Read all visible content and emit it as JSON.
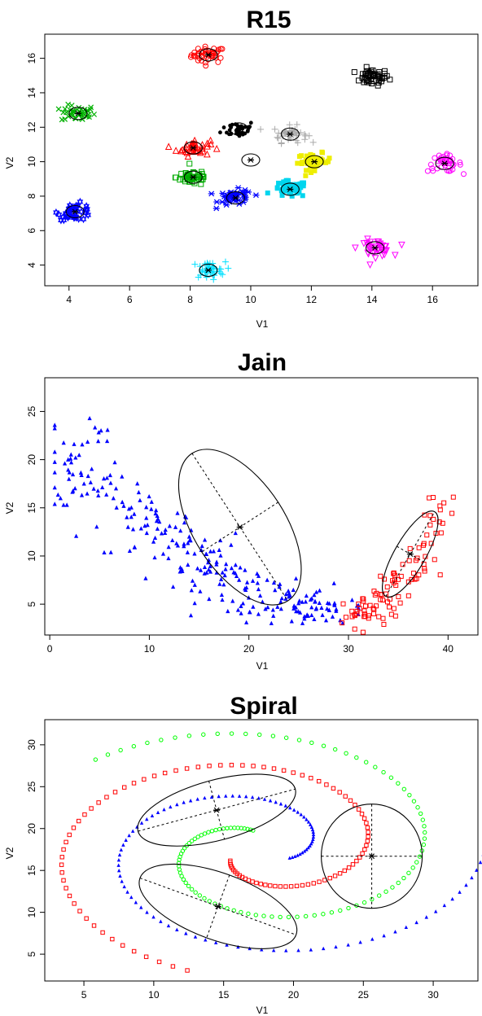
{
  "chart_data": [
    {
      "type": "scatter",
      "title": "R15",
      "xlabel": "V1",
      "ylabel": "V2",
      "xlim": [
        3.2,
        17.5
      ],
      "ylim": [
        2.8,
        17.4
      ],
      "xticks": [
        4,
        6,
        8,
        10,
        12,
        14,
        16
      ],
      "yticks": [
        4,
        6,
        8,
        10,
        12,
        14,
        16
      ],
      "clusters": [
        {
          "color": "#ff0000",
          "marker": "circle",
          "center": [
            8.6,
            16.2
          ],
          "count": 45
        },
        {
          "color": "#000000",
          "marker": "square",
          "center": [
            14.0,
            14.9
          ],
          "count": 45
        },
        {
          "color": "#00b000",
          "marker": "x",
          "center": [
            4.3,
            12.8
          ],
          "count": 40
        },
        {
          "color": "#000000",
          "marker": "dot",
          "center": [
            9.6,
            11.9
          ],
          "count": 40
        },
        {
          "color": "#aaaaaa",
          "marker": "plus",
          "center": [
            11.3,
            11.6
          ],
          "count": 40
        },
        {
          "color": "#ff0000",
          "marker": "triangle",
          "center": [
            8.1,
            10.8
          ],
          "count": 40
        },
        {
          "color": "#000000",
          "marker": "empty",
          "center": [
            10.0,
            10.1
          ],
          "count": 0
        },
        {
          "color": "#eeee00",
          "marker": "square-filled",
          "center": [
            12.1,
            10.0
          ],
          "count": 45
        },
        {
          "color": "#ff00ff",
          "marker": "circle",
          "center": [
            16.4,
            9.9
          ],
          "count": 40
        },
        {
          "color": "#00aa00",
          "marker": "square",
          "center": [
            8.1,
            9.1
          ],
          "count": 45
        },
        {
          "color": "#00d5ee",
          "marker": "square-filled",
          "center": [
            11.3,
            8.4
          ],
          "count": 45
        },
        {
          "color": "#0000ff",
          "marker": "asterisk",
          "center": [
            9.5,
            7.9
          ],
          "count": 45
        },
        {
          "color": "#0000ff",
          "marker": "star",
          "center": [
            4.2,
            7.1
          ],
          "count": 40
        },
        {
          "color": "#ff00ff",
          "marker": "triangle-down",
          "center": [
            14.1,
            5.0
          ],
          "count": 40
        },
        {
          "color": "#00e0ff",
          "marker": "plus",
          "center": [
            8.6,
            3.7
          ],
          "count": 40
        }
      ]
    },
    {
      "type": "scatter",
      "title": "Jain",
      "xlabel": "V1",
      "ylabel": "V2",
      "xlim": [
        -0.5,
        43
      ],
      "ylim": [
        1.8,
        28.5
      ],
      "xticks": [
        0,
        10,
        20,
        30,
        40
      ],
      "yticks": [
        5,
        10,
        15,
        20,
        25
      ],
      "clusters": [
        {
          "color": "#0000ff",
          "marker": "triangle-filled",
          "shape": "crescent",
          "center": [
            19.1,
            13.0
          ],
          "count": 276
        },
        {
          "color": "#ff0000",
          "marker": "square",
          "shape": "arm",
          "center": [
            36.2,
            10.2
          ],
          "count": 97
        }
      ]
    },
    {
      "type": "scatter",
      "title": "Spiral",
      "xlabel": "V1",
      "ylabel": "V2",
      "xlim": [
        2.2,
        33.2
      ],
      "ylim": [
        1.8,
        33.0
      ],
      "xticks": [
        5,
        10,
        15,
        20,
        25,
        30
      ],
      "yticks": [
        5,
        10,
        15,
        20,
        25,
        30
      ],
      "clusters": [
        {
          "color": "#00ff00",
          "marker": "circle",
          "shape": "spiral",
          "center": [
            14.5,
            22.2
          ],
          "count": 106
        },
        {
          "color": "#0000ff",
          "marker": "triangle-filled",
          "shape": "spiral",
          "center": [
            25.6,
            16.7
          ],
          "count": 106
        },
        {
          "color": "#ff0000",
          "marker": "square",
          "shape": "spiral",
          "center": [
            14.6,
            10.7
          ],
          "count": 100
        }
      ]
    }
  ]
}
